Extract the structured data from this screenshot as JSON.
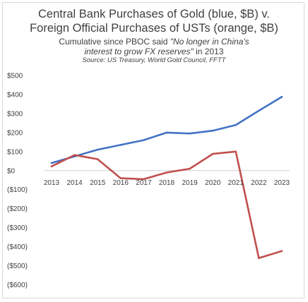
{
  "chart_data": {
    "type": "line",
    "title_line1": "Central Bank Purchases of Gold (blue, $B) v.",
    "title_line2": "Foreign Official Purchases of USTs (orange, $B)",
    "subtitle_line1": "Cumulative since PBOC said ",
    "subtitle_quote_line1": "\"No longer in China's",
    "subtitle_quote_line2": "interest to grow FX reserves\"",
    "subtitle_tail": " in 2013",
    "source": "Source: US Treasury, World Gold Council, FFTT",
    "xlabel": "",
    "ylabel": "",
    "categories": [
      "2013",
      "2014",
      "2015",
      "2016",
      "2017",
      "2018",
      "2019",
      "2020",
      "2021",
      "2022",
      "2023"
    ],
    "y_ticks": [
      500,
      400,
      300,
      200,
      100,
      0,
      -100,
      -200,
      -300,
      -400,
      -500,
      -600
    ],
    "y_tick_labels": [
      "$500",
      "$400",
      "$300",
      "$200",
      "$100",
      "$0",
      "($100)",
      "($200)",
      "($300)",
      "($400)",
      "($500)",
      "($600)"
    ],
    "ylim": [
      -600,
      500
    ],
    "grid": false,
    "series": [
      {
        "color": "#4472c4",
        "values": [
          40,
          75,
          110,
          135,
          160,
          200,
          195,
          210,
          240,
          315,
          388
        ]
      },
      {
        "color": "#c0504d",
        "values": [
          22,
          82,
          60,
          -40,
          -45,
          -10,
          10,
          88,
          100,
          -460,
          -423
        ]
      }
    ]
  }
}
